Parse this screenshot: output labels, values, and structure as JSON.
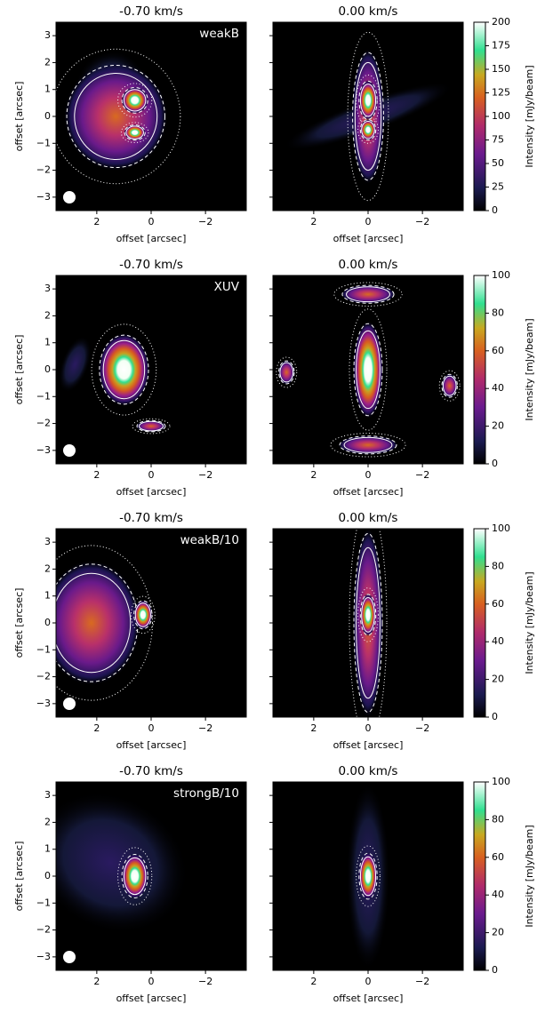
{
  "chart_data": [
    {
      "type": "image",
      "title": "-0.70 km/s",
      "label": "weakB",
      "xlabel": "offset [arcsec]",
      "ylabel": "offset [arcsec]",
      "xlim": [
        3.5,
        -3.5
      ],
      "ylim": [
        -3.5,
        3.5
      ],
      "xticks": [
        2,
        0,
        {
          "value": -2,
          "label": "−2"
        }
      ],
      "yticks": [
        {
          "value": -3,
          "label": "−3"
        },
        {
          "value": -2,
          "label": "−2"
        },
        {
          "value": -1,
          "label": "−1"
        },
        0,
        1,
        2,
        3
      ]
    },
    {
      "type": "image",
      "title": "0.00 km/s",
      "xlabel": "offset [arcsec]",
      "xlim": [
        3.5,
        -3.5
      ],
      "ylim": [
        -3.5,
        3.5
      ],
      "xticks": [
        2,
        0,
        {
          "value": -2,
          "label": "−2"
        }
      ],
      "yticks": [
        -3,
        -2,
        -1,
        0,
        1,
        2,
        3
      ],
      "colorbar": {
        "label": "Intensity [mJy/beam]",
        "lim": [
          0,
          200
        ],
        "ticks": [
          0,
          25,
          50,
          75,
          100,
          125,
          150,
          175,
          200
        ]
      }
    },
    {
      "type": "image",
      "title": "-0.70 km/s",
      "label": "XUV",
      "xlabel": "offset [arcsec]",
      "ylabel": "offset [arcsec]",
      "xlim": [
        3.5,
        -3.5
      ],
      "ylim": [
        -3.5,
        3.5
      ],
      "xticks": [
        2,
        0,
        {
          "value": -2,
          "label": "−2"
        }
      ],
      "yticks": [
        {
          "value": -3,
          "label": "−3"
        },
        {
          "value": -2,
          "label": "−2"
        },
        {
          "value": -1,
          "label": "−1"
        },
        0,
        1,
        2,
        3
      ]
    },
    {
      "type": "image",
      "title": "0.00 km/s",
      "xlabel": "offset [arcsec]",
      "xlim": [
        3.5,
        -3.5
      ],
      "ylim": [
        -3.5,
        3.5
      ],
      "xticks": [
        2,
        0,
        {
          "value": -2,
          "label": "−2"
        }
      ],
      "yticks": [
        -3,
        -2,
        -1,
        0,
        1,
        2,
        3
      ],
      "colorbar": {
        "label": "Intensity [mJy/beam]",
        "lim": [
          0,
          100
        ],
        "ticks": [
          0,
          20,
          40,
          60,
          80,
          100
        ]
      }
    },
    {
      "type": "image",
      "title": "-0.70 km/s",
      "label": "weakB/10",
      "xlabel": "offset [arcsec]",
      "ylabel": "offset [arcsec]",
      "xlim": [
        3.5,
        -3.5
      ],
      "ylim": [
        -3.5,
        3.5
      ],
      "xticks": [
        2,
        0,
        {
          "value": -2,
          "label": "−2"
        }
      ],
      "yticks": [
        {
          "value": -3,
          "label": "−3"
        },
        {
          "value": -2,
          "label": "−2"
        },
        {
          "value": -1,
          "label": "−1"
        },
        0,
        1,
        2,
        3
      ]
    },
    {
      "type": "image",
      "title": "0.00 km/s",
      "xlabel": "offset [arcsec]",
      "xlim": [
        3.5,
        -3.5
      ],
      "ylim": [
        -3.5,
        3.5
      ],
      "xticks": [
        2,
        0,
        {
          "value": -2,
          "label": "−2"
        }
      ],
      "yticks": [
        -3,
        -2,
        -1,
        0,
        1,
        2,
        3
      ],
      "colorbar": {
        "label": "Intensity [mJy/beam]",
        "lim": [
          0,
          100
        ],
        "ticks": [
          0,
          20,
          40,
          60,
          80,
          100
        ]
      }
    },
    {
      "type": "image",
      "title": "-0.70 km/s",
      "label": "strongB/10",
      "xlabel": "offset [arcsec]",
      "ylabel": "offset [arcsec]",
      "xlim": [
        3.5,
        -3.5
      ],
      "ylim": [
        -3.5,
        3.5
      ],
      "xticks": [
        2,
        0,
        {
          "value": -2,
          "label": "−2"
        }
      ],
      "yticks": [
        {
          "value": -3,
          "label": "−3"
        },
        {
          "value": -2,
          "label": "−2"
        },
        {
          "value": -1,
          "label": "−1"
        },
        0,
        1,
        2,
        3
      ]
    },
    {
      "type": "image",
      "title": "0.00 km/s",
      "xlabel": "offset [arcsec]",
      "xlim": [
        3.5,
        -3.5
      ],
      "ylim": [
        -3.5,
        3.5
      ],
      "xticks": [
        2,
        0,
        {
          "value": -2,
          "label": "−2"
        }
      ],
      "yticks": [
        -3,
        -2,
        -1,
        0,
        1,
        2,
        3
      ],
      "colorbar": {
        "label": "Intensity [mJy/beam]",
        "lim": [
          0,
          100
        ],
        "ticks": [
          0,
          20,
          40,
          60,
          80,
          100
        ]
      }
    }
  ]
}
